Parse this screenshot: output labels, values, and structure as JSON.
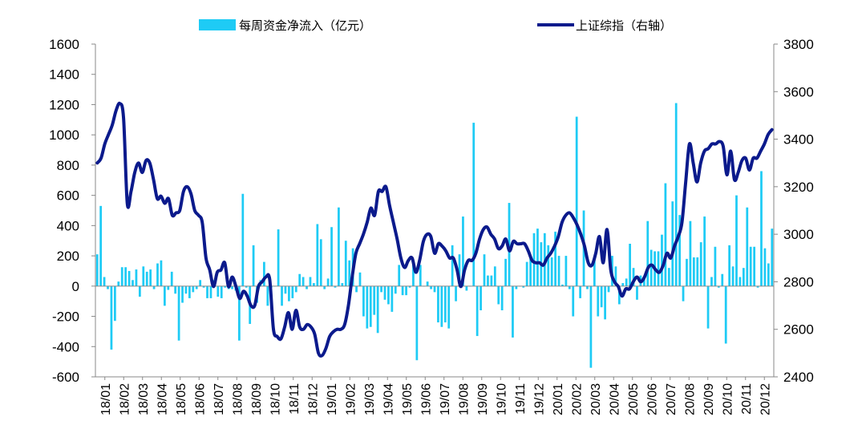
{
  "chart_data": {
    "type": "bar+line",
    "legend": {
      "bar_label": "每周资金净流入（亿元）",
      "line_label": "上证综指（右轴）",
      "placement": "top-center"
    },
    "colors": {
      "bar": "#1ECBF5",
      "line": "#0B1A8C",
      "axis": "#888888"
    },
    "left_axis": {
      "min": -600,
      "max": 1600,
      "ticks": [
        "1600",
        "1400",
        "1200",
        "1000",
        "800",
        "600",
        "400",
        "200",
        "0",
        "-200",
        "-400",
        "-600"
      ]
    },
    "right_axis": {
      "min": 2400,
      "max": 3800,
      "ticks": [
        "3800",
        "3600",
        "3400",
        "3200",
        "3000",
        "2800",
        "2600",
        "2400"
      ]
    },
    "x_tick_labels": [
      "18/01",
      "18/02",
      "18/03",
      "18/04",
      "18/05",
      "18/06",
      "18/07",
      "18/08",
      "18/09",
      "18/10",
      "18/11",
      "18/12",
      "19/01",
      "19/02",
      "19/03",
      "19/04",
      "19/05",
      "19/06",
      "19/07",
      "19/08",
      "19/09",
      "19/10",
      "19/11",
      "19/12",
      "20/01",
      "20/02",
      "20/03",
      "20/04",
      "20/05",
      "20/06",
      "20/07",
      "20/08",
      "20/09",
      "20/10",
      "20/11",
      "20/12"
    ],
    "weekly_net_inflow": [
      210,
      530,
      60,
      -20,
      -420,
      -230,
      30,
      125,
      125,
      100,
      40,
      110,
      -70,
      130,
      95,
      110,
      -20,
      150,
      170,
      -130,
      -25,
      95,
      -50,
      -360,
      -110,
      -50,
      -80,
      -40,
      -20,
      40,
      -10,
      -80,
      -80,
      40,
      -70,
      -80,
      -10,
      -20,
      -20,
      -30,
      -360,
      610,
      -10,
      -250,
      270,
      -110,
      40,
      160,
      -130,
      -10,
      0,
      375,
      -130,
      -50,
      -100,
      -80,
      -40,
      80,
      60,
      -20,
      60,
      20,
      410,
      310,
      -20,
      50,
      390,
      -10,
      520,
      20,
      300,
      170,
      250,
      -40,
      90,
      -200,
      -280,
      -270,
      -190,
      -310,
      -40,
      -90,
      -120,
      -170,
      -50,
      140,
      -60,
      -60,
      -10,
      150,
      -490,
      140,
      0,
      30,
      -20,
      -40,
      -240,
      -270,
      -240,
      -280,
      270,
      -100,
      210,
      460,
      -30,
      0,
      1080,
      -330,
      -160,
      210,
      70,
      70,
      130,
      -120,
      -160,
      180,
      550,
      -340,
      -20,
      0,
      -10,
      160,
      180,
      350,
      380,
      290,
      350,
      270,
      190,
      360,
      200,
      10,
      200,
      -20,
      -200,
      1120,
      -80,
      500,
      -20,
      -540,
      190,
      -200,
      -140,
      -220,
      -40,
      200,
      130,
      -120,
      20,
      50,
      280,
      120,
      -90,
      70,
      50,
      430,
      240,
      230,
      230,
      340,
      680,
      120,
      560,
      1210,
      470,
      -100,
      180,
      430,
      190,
      190,
      290,
      460,
      -280,
      60,
      260,
      -10,
      80,
      -380,
      270,
      130,
      600,
      60,
      120,
      520,
      260,
      260,
      -10,
      760,
      250,
      150,
      380
    ],
    "shanghai_composite": [
      3300,
      3320,
      3380,
      3420,
      3460,
      3520,
      3550,
      3490,
      3130,
      3180,
      3260,
      3300,
      3260,
      3310,
      3300,
      3230,
      3150,
      3160,
      3130,
      3150,
      3080,
      3090,
      3100,
      3180,
      3200,
      3170,
      3100,
      3080,
      3050,
      2900,
      2850,
      2780,
      2840,
      2850,
      2880,
      2780,
      2820,
      2780,
      2730,
      2760,
      2740,
      2700,
      2700,
      2780,
      2800,
      2820,
      2810,
      2600,
      2570,
      2560,
      2610,
      2670,
      2600,
      2680,
      2610,
      2600,
      2620,
      2610,
      2580,
      2500,
      2490,
      2520,
      2570,
      2590,
      2600,
      2600,
      2620,
      2700,
      2820,
      2920,
      2960,
      3000,
      3050,
      3110,
      3080,
      3180,
      3180,
      3200,
      3120,
      3050,
      2980,
      2900,
      2860,
      2890,
      2900,
      2840,
      2890,
      2970,
      3000,
      2990,
      2920,
      2960,
      2950,
      2930,
      2900,
      2900,
      2850,
      2780,
      2850,
      2890,
      2890,
      2920,
      2980,
      3020,
      3030,
      3000,
      2980,
      2940,
      2950,
      2980,
      2930,
      2970,
      2960,
      2960,
      2960,
      2930,
      2890,
      2880,
      2880,
      2870,
      2900,
      2920,
      2950,
      2990,
      3050,
      3080,
      3090,
      3070,
      3040,
      3000,
      2950,
      2880,
      2870,
      2920,
      2990,
      2880,
      3020,
      2850,
      2800,
      2780,
      2740,
      2770,
      2770,
      2800,
      2820,
      2800,
      2820,
      2860,
      2870,
      2850,
      2840,
      2870,
      2920,
      2900,
      2950,
      2990,
      3050,
      3220,
      3380,
      3300,
      3220,
      3300,
      3350,
      3360,
      3380,
      3380,
      3390,
      3370,
      3250,
      3350,
      3230,
      3260,
      3310,
      3320,
      3270,
      3320,
      3320,
      3350,
      3380,
      3420,
      3440
    ]
  }
}
